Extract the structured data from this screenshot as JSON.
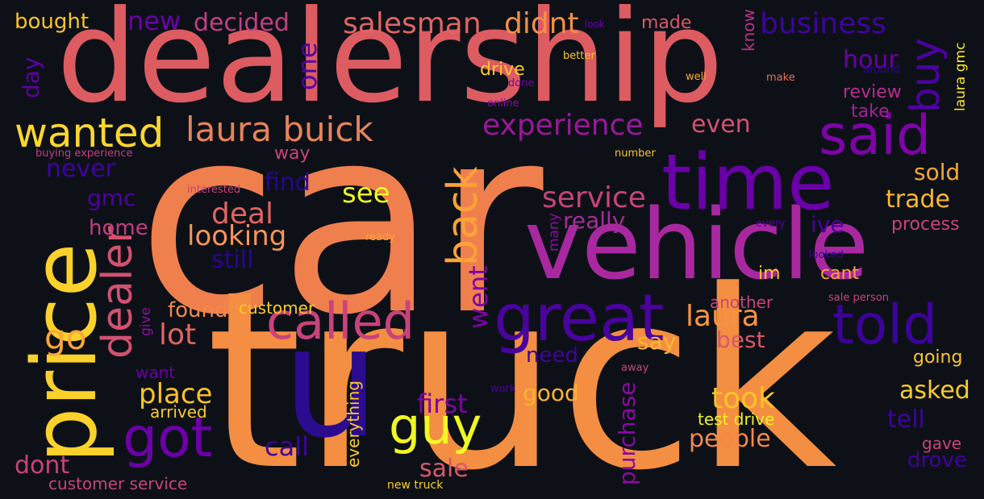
{
  "background": "#0d1117",
  "words": [
    {
      "text": "car",
      "color": "#f07f4e"
    },
    {
      "text": "truck",
      "color": "#f48e42"
    },
    {
      "text": "dealership",
      "color": "#dc5c62"
    },
    {
      "text": "vehicle",
      "color": "#a928a0"
    },
    {
      "text": "time",
      "color": "#6a00a8"
    },
    {
      "text": "price",
      "color": "#fbd12c"
    },
    {
      "text": "u",
      "color": "#2b0c8f"
    },
    {
      "text": "great",
      "color": "#48049d"
    },
    {
      "text": "told",
      "color": "#3a049a"
    },
    {
      "text": "called",
      "color": "#c8437b"
    },
    {
      "text": "got",
      "color": "#6c00a8"
    },
    {
      "text": "guy",
      "color": "#f0f921"
    },
    {
      "text": "said",
      "color": "#7e03a8"
    },
    {
      "text": "wanted",
      "color": "#fdd72e"
    },
    {
      "text": "laura buick",
      "color": "#e8825a"
    },
    {
      "text": "dealer",
      "color": "#d35171"
    },
    {
      "text": "back",
      "color": "#fca338"
    },
    {
      "text": "buy",
      "color": "#4c02a1"
    },
    {
      "text": "experience",
      "color": "#9a179b"
    },
    {
      "text": "salesman",
      "color": "#e16462"
    },
    {
      "text": "didnt",
      "color": "#f68f44"
    },
    {
      "text": "new",
      "color": "#6a00a8"
    },
    {
      "text": "decided",
      "color": "#c13f83"
    },
    {
      "text": "bought",
      "color": "#fdc328"
    },
    {
      "text": "business",
      "color": "#3e049c"
    },
    {
      "text": "hour",
      "color": "#6a00a8"
    },
    {
      "text": "one",
      "color": "#5302a3"
    },
    {
      "text": "even",
      "color": "#d35171"
    },
    {
      "text": "day",
      "color": "#5d01a6"
    },
    {
      "text": "made",
      "color": "#d8576b"
    },
    {
      "text": "know",
      "color": "#b83289"
    },
    {
      "text": "look",
      "color": "#6a00a8"
    },
    {
      "text": "drive",
      "color": "#fdca26"
    },
    {
      "text": "better",
      "color": "#fdc527"
    },
    {
      "text": "done",
      "color": "#7201a8"
    },
    {
      "text": "online",
      "color": "#8b0aa5"
    },
    {
      "text": "well",
      "color": "#fca636"
    },
    {
      "text": "make",
      "color": "#e6705b"
    },
    {
      "text": "around",
      "color": "#2a0593"
    },
    {
      "text": "review",
      "color": "#b52f8c"
    },
    {
      "text": "take",
      "color": "#a62098"
    },
    {
      "text": "laura gmc",
      "color": "#fde724"
    },
    {
      "text": "never",
      "color": "#3e049c"
    },
    {
      "text": "buying experience",
      "color": "#c23e81"
    },
    {
      "text": "way",
      "color": "#c8437b"
    },
    {
      "text": "number",
      "color": "#fec029"
    },
    {
      "text": "gmc",
      "color": "#4c02a1"
    },
    {
      "text": "find",
      "color": "#2a0593"
    },
    {
      "text": "interested",
      "color": "#c8437b"
    },
    {
      "text": "see",
      "color": "#f0f921"
    },
    {
      "text": "service",
      "color": "#c8437b"
    },
    {
      "text": "sold",
      "color": "#fca636"
    },
    {
      "text": "trade",
      "color": "#fcb730"
    },
    {
      "text": "deal",
      "color": "#e16462"
    },
    {
      "text": "home",
      "color": "#c33d80"
    },
    {
      "text": "looking",
      "color": "#f7945a"
    },
    {
      "text": "really",
      "color": "#a52c98"
    },
    {
      "text": "ive",
      "color": "#4c02a1"
    },
    {
      "text": "process",
      "color": "#c8437b"
    },
    {
      "text": "every",
      "color": "#5402a3"
    },
    {
      "text": "ready",
      "color": "#fca636"
    },
    {
      "text": "many",
      "color": "#8f0da4"
    },
    {
      "text": "still",
      "color": "#2c0594"
    },
    {
      "text": "went",
      "color": "#7e03a8"
    },
    {
      "text": "looked",
      "color": "#3d049b"
    },
    {
      "text": "im",
      "color": "#fdca26"
    },
    {
      "text": "cant",
      "color": "#fba238"
    },
    {
      "text": "found",
      "color": "#f48849"
    },
    {
      "text": "customer",
      "color": "#fdca26"
    },
    {
      "text": "another",
      "color": "#c8437b"
    },
    {
      "text": "sale person",
      "color": "#c8437b"
    },
    {
      "text": "go",
      "color": "#fca636"
    },
    {
      "text": "give",
      "color": "#8f0da4"
    },
    {
      "text": "lot",
      "color": "#e16462"
    },
    {
      "text": "laura",
      "color": "#f89441"
    },
    {
      "text": "say",
      "color": "#fcb730"
    },
    {
      "text": "best",
      "color": "#d8576b"
    },
    {
      "text": "need",
      "color": "#3e049c"
    },
    {
      "text": "going",
      "color": "#fdc328"
    },
    {
      "text": "want",
      "color": "#6a00a8"
    },
    {
      "text": "place",
      "color": "#fdc328"
    },
    {
      "text": "first",
      "color": "#7e03a8"
    },
    {
      "text": "good",
      "color": "#fdb42f"
    },
    {
      "text": "away",
      "color": "#c8437b"
    },
    {
      "text": "took",
      "color": "#fdc328"
    },
    {
      "text": "asked",
      "color": "#fdca26"
    },
    {
      "text": "work",
      "color": "#4c02a1"
    },
    {
      "text": "arrived",
      "color": "#fdca26"
    },
    {
      "text": "test drive",
      "color": "#f2f125"
    },
    {
      "text": "tell",
      "color": "#3e049c"
    },
    {
      "text": "purchase",
      "color": "#8b0aa5"
    },
    {
      "text": "gave",
      "color": "#c8437b"
    },
    {
      "text": "people",
      "color": "#f48849"
    },
    {
      "text": "everything",
      "color": "#fdca26"
    },
    {
      "text": "call",
      "color": "#3e049c"
    },
    {
      "text": "dont",
      "color": "#c8437b"
    },
    {
      "text": "sale",
      "color": "#d8576b"
    },
    {
      "text": "drove",
      "color": "#3e049c"
    },
    {
      "text": "customer service",
      "color": "#c8437b"
    },
    {
      "text": "new truck",
      "color": "#fdca26"
    }
  ]
}
